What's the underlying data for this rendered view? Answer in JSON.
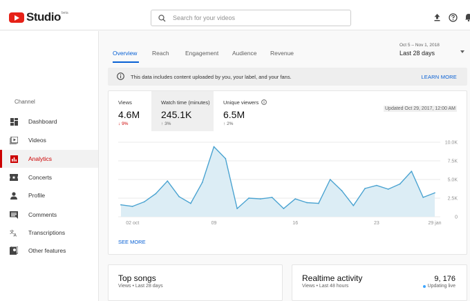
{
  "header": {
    "logo_text": "Studio",
    "logo_badge": "beta",
    "search_placeholder": "Search for your videos",
    "icons": [
      "upload-icon",
      "help-icon",
      "notifications-icon"
    ]
  },
  "sidebar": {
    "section_label": "Channel",
    "items": [
      {
        "label": "Dashboard",
        "icon": "dashboard-icon",
        "active": false
      },
      {
        "label": "Videos",
        "icon": "videos-icon",
        "active": false
      },
      {
        "label": "Analytics",
        "icon": "analytics-icon",
        "active": true
      },
      {
        "label": "Concerts",
        "icon": "ticket-icon",
        "active": false
      },
      {
        "label": "Profile",
        "icon": "person-icon",
        "active": false
      },
      {
        "label": "Comments",
        "icon": "comment-icon",
        "active": false
      },
      {
        "label": "Transcriptions",
        "icon": "translate-icon",
        "active": false
      },
      {
        "label": "Other features",
        "icon": "other-features-icon",
        "active": false
      }
    ]
  },
  "tabs": [
    {
      "label": "Overview",
      "active": true
    },
    {
      "label": "Reach",
      "active": false
    },
    {
      "label": "Engagement",
      "active": false
    },
    {
      "label": "Audience",
      "active": false
    },
    {
      "label": "Revenue",
      "active": false
    }
  ],
  "date_range": {
    "dates": "Oct 5 – Nov 1, 2018",
    "label": "Last 28 days"
  },
  "notice": {
    "text": "This data includes content uploaded by you, your label, and your fans.",
    "action": "LEARN MORE"
  },
  "metrics": [
    {
      "label": "Views",
      "value": "4.6M",
      "change": "9%",
      "direction": "down",
      "selected": false
    },
    {
      "label": "Watch time (minutes)",
      "value": "245.1K",
      "change": "3%",
      "direction": "up",
      "selected": true
    },
    {
      "label": "Unique viewers",
      "value": "6.5M",
      "change": "2%",
      "direction": "up",
      "selected": false
    }
  ],
  "updated_text": "Updated Oct 29, 2017, 12:00 AM",
  "see_more": "SEE MORE",
  "colors": {
    "accent_blue": "#065fd4",
    "brand_red": "#cc0000",
    "chart_line": "#4aa3d1",
    "chart_fill": "#dcedf5"
  },
  "chart_data": {
    "type": "area",
    "x_tick_labels": [
      "02 oct",
      "09",
      "16",
      "23",
      "29 jan"
    ],
    "y_tick_labels": [
      "10.0K",
      "7.5K",
      "5.0K",
      "2.5K",
      "0"
    ],
    "ylim": [
      0,
      10000
    ],
    "grid": true,
    "values": [
      1600,
      1400,
      2000,
      3100,
      4800,
      2700,
      1800,
      4600,
      9400,
      7800,
      1100,
      2500,
      2400,
      2600,
      1100,
      2400,
      1900,
      1800,
      5000,
      3500,
      1500,
      3800,
      4200,
      3700,
      4400,
      6100,
      2600,
      3200
    ]
  },
  "bottom_cards": {
    "top_songs": {
      "title": "Top songs",
      "subtitle": "Views • Last 28 days"
    },
    "realtime": {
      "title": "Realtime activity",
      "subtitle": "Views • Last 48 hours",
      "count": "9, 176",
      "live_label": "Updating live"
    }
  }
}
